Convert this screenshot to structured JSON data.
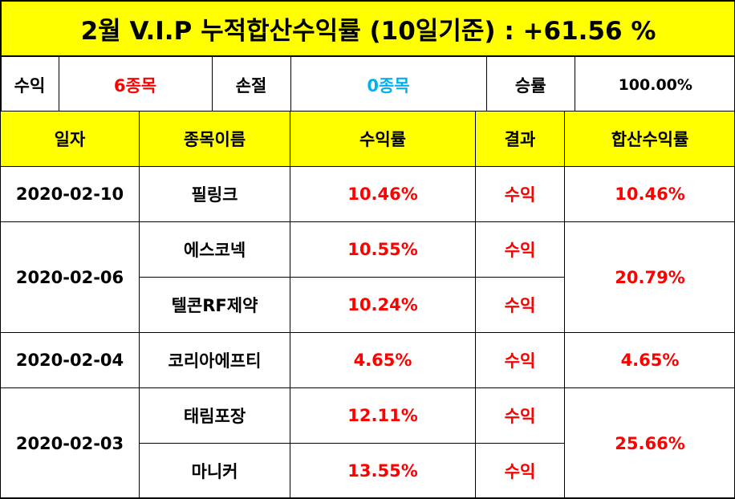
{
  "title": "2월 V.I.P 누적합산수익률 (10일기준) : +61.56 %",
  "summary": {
    "profit_label": "수익",
    "profit_value": "6종목",
    "loss_label": "손절",
    "loss_value": "0종목",
    "winrate_label": "승률",
    "winrate_value": "100.00%"
  },
  "columns": {
    "date": "일자",
    "name": "종목이름",
    "return": "수익률",
    "result": "결과",
    "total": "합산수익률"
  },
  "groups": [
    {
      "date": "2020-02-10",
      "total": "10.46%",
      "items": [
        {
          "name": "필링크",
          "return": "10.46%",
          "result": "수익"
        }
      ]
    },
    {
      "date": "2020-02-06",
      "total": "20.79%",
      "items": [
        {
          "name": "에스코넥",
          "return": "10.55%",
          "result": "수익"
        },
        {
          "name": "텔콘RF제약",
          "return": "10.24%",
          "result": "수익"
        }
      ]
    },
    {
      "date": "2020-02-04",
      "total": "4.65%",
      "items": [
        {
          "name": "코리아에프티",
          "return": "4.65%",
          "result": "수익"
        }
      ]
    },
    {
      "date": "2020-02-03",
      "total": "25.66%",
      "items": [
        {
          "name": "태림포장",
          "return": "12.11%",
          "result": "수익"
        },
        {
          "name": "마니커",
          "return": "13.55%",
          "result": "수익"
        }
      ]
    }
  ],
  "colors": {
    "header_bg": "#ffff00",
    "profit": "#ff0000",
    "loss": "#00b0f0"
  }
}
